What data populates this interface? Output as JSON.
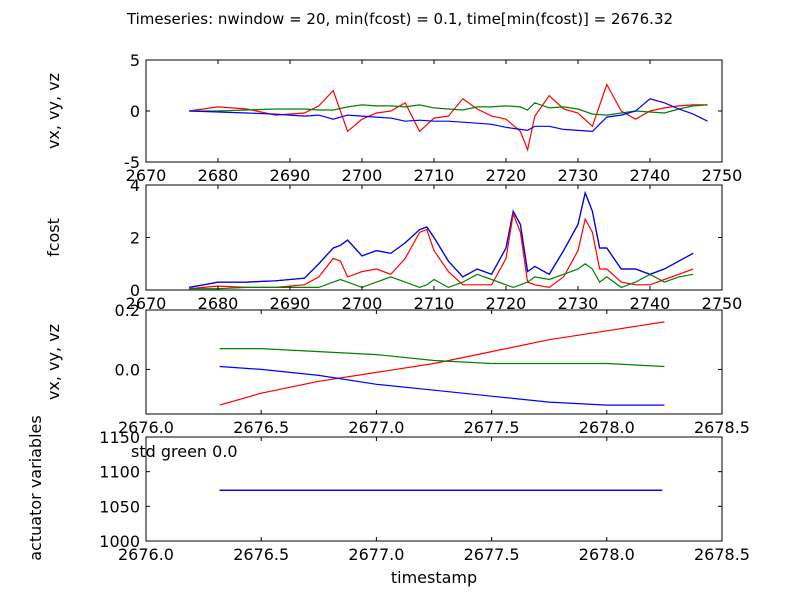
{
  "figure": {
    "title": "Timeseries: nwindow = 20, min(fcost) = 0.1, time[min(fcost)] = 2676.32",
    "xlabel": "timestamp"
  },
  "chart_data": [
    {
      "type": "line",
      "ylabel": "vx, vy, vz",
      "xlim": [
        2670,
        2750
      ],
      "ylim": [
        -5,
        5
      ],
      "xticks": [
        "2670",
        "2680",
        "2690",
        "2700",
        "2710",
        "2720",
        "2730",
        "2740",
        "2750"
      ],
      "yticks": [
        "-5",
        "0",
        "5"
      ],
      "x": [
        2676,
        2680,
        2684,
        2688,
        2692,
        2694,
        2696,
        2698,
        2700,
        2702,
        2704,
        2706,
        2708,
        2710,
        2712,
        2714,
        2716,
        2718,
        2720,
        2722,
        2723,
        2724,
        2726,
        2728,
        2730,
        2732,
        2734,
        2736,
        2738,
        2740,
        2742,
        2744,
        2746,
        2748
      ],
      "series": [
        {
          "color": "#ff0000",
          "values": [
            0.0,
            0.4,
            0.2,
            -0.4,
            -0.2,
            0.5,
            2.0,
            -2.0,
            -0.8,
            -0.2,
            0.0,
            0.8,
            -2.0,
            -0.7,
            -0.5,
            1.2,
            0.2,
            -0.5,
            -0.8,
            -2.0,
            -3.8,
            -0.5,
            1.5,
            0.2,
            -0.2,
            -1.5,
            2.6,
            0.0,
            -0.8,
            0.0,
            0.3,
            0.5,
            0.6,
            0.6
          ]
        },
        {
          "color": "#008000",
          "values": [
            0.0,
            0.0,
            0.1,
            0.2,
            0.2,
            0.1,
            0.1,
            0.4,
            0.6,
            0.5,
            0.5,
            0.4,
            0.6,
            0.3,
            0.2,
            0.1,
            0.4,
            0.4,
            0.5,
            0.4,
            0.1,
            0.8,
            0.3,
            0.4,
            0.2,
            -0.3,
            -0.4,
            -0.2,
            0.0,
            -0.1,
            -0.2,
            0.2,
            0.5,
            0.6
          ]
        },
        {
          "color": "#0000ff",
          "values": [
            0.0,
            -0.1,
            -0.2,
            -0.3,
            -0.5,
            -0.4,
            -0.8,
            -0.4,
            -0.5,
            -0.6,
            -0.7,
            -1.0,
            -0.9,
            -1.0,
            -1.0,
            -1.1,
            -1.2,
            -1.3,
            -1.6,
            -1.8,
            -1.9,
            -1.5,
            -1.5,
            -1.8,
            -1.9,
            -2.0,
            -0.6,
            -0.4,
            0.0,
            1.2,
            0.8,
            0.2,
            -0.3,
            -1.0
          ]
        }
      ]
    },
    {
      "type": "line",
      "ylabel": "fcost",
      "xlim": [
        2670,
        2750
      ],
      "ylim": [
        0,
        4
      ],
      "xticks": [
        "2670",
        "2680",
        "2690",
        "2700",
        "2710",
        "2720",
        "2730",
        "2740",
        "2750"
      ],
      "yticks": [
        "0",
        "2",
        "4"
      ],
      "x": [
        2676,
        2678,
        2680,
        2684,
        2688,
        2692,
        2694,
        2696,
        2697,
        2698,
        2700,
        2702,
        2704,
        2706,
        2708,
        2709,
        2710,
        2712,
        2714,
        2716,
        2718,
        2720,
        2721,
        2722,
        2723,
        2724,
        2726,
        2728,
        2730,
        2731,
        2732,
        2733,
        2734,
        2736,
        2738,
        2740,
        2742,
        2744,
        2746
      ],
      "series": [
        {
          "color": "#000000",
          "values": [
            0.1,
            0.2,
            0.3,
            0.3,
            0.35,
            0.45,
            1.0,
            1.6,
            1.7,
            1.9,
            1.3,
            1.5,
            1.4,
            1.8,
            2.3,
            2.4,
            2.0,
            1.1,
            0.5,
            0.8,
            0.6,
            1.6,
            3.0,
            2.5,
            0.7,
            0.9,
            0.6,
            1.5,
            2.5,
            3.7,
            3.0,
            1.6,
            1.6,
            0.8,
            0.8,
            0.6,
            0.8,
            1.1,
            1.4
          ]
        },
        {
          "color": "#0000ff",
          "values": [
            0.1,
            0.2,
            0.3,
            0.3,
            0.35,
            0.45,
            1.0,
            1.6,
            1.7,
            1.9,
            1.3,
            1.5,
            1.4,
            1.8,
            2.3,
            2.4,
            2.0,
            1.1,
            0.5,
            0.8,
            0.6,
            1.6,
            3.0,
            2.5,
            0.7,
            0.9,
            0.6,
            1.5,
            2.5,
            3.7,
            3.0,
            1.6,
            1.6,
            0.8,
            0.8,
            0.6,
            0.8,
            1.1,
            1.4
          ]
        },
        {
          "color": "#ff0000",
          "values": [
            0.05,
            0.1,
            0.15,
            0.1,
            0.1,
            0.2,
            0.5,
            1.2,
            1.1,
            0.5,
            0.7,
            0.8,
            0.6,
            1.2,
            2.2,
            2.3,
            1.5,
            0.7,
            0.2,
            0.2,
            0.2,
            1.2,
            2.9,
            2.2,
            0.3,
            0.2,
            0.1,
            0.5,
            1.5,
            2.7,
            2.2,
            0.8,
            0.8,
            0.3,
            0.2,
            0.2,
            0.4,
            0.6,
            0.8
          ]
        },
        {
          "color": "#008000",
          "values": [
            0.05,
            0.05,
            0.05,
            0.1,
            0.1,
            0.1,
            0.1,
            0.3,
            0.4,
            0.3,
            0.1,
            0.3,
            0.5,
            0.3,
            0.1,
            0.2,
            0.4,
            0.1,
            0.3,
            0.6,
            0.4,
            0.2,
            0.1,
            0.2,
            0.3,
            0.5,
            0.4,
            0.6,
            0.8,
            1.0,
            0.8,
            0.3,
            0.5,
            0.1,
            0.3,
            0.6,
            0.3,
            0.5,
            0.6
          ]
        }
      ]
    },
    {
      "type": "line",
      "ylabel": "vx, vy, vz",
      "xlim": [
        2676.0,
        2678.5
      ],
      "ylim": [
        -0.15,
        0.2
      ],
      "xticks": [
        "2676.0",
        "2676.5",
        "2677.0",
        "2677.5",
        "2678.0",
        "2678.5"
      ],
      "yticks": [
        "0.0",
        "0.2"
      ],
      "x": [
        2676.32,
        2676.5,
        2676.75,
        2677.0,
        2677.25,
        2677.5,
        2677.75,
        2678.0,
        2678.25
      ],
      "series": [
        {
          "color": "#ff0000",
          "values": [
            -0.12,
            -0.08,
            -0.04,
            -0.01,
            0.02,
            0.06,
            0.1,
            0.13,
            0.16
          ]
        },
        {
          "color": "#008000",
          "values": [
            0.07,
            0.07,
            0.06,
            0.05,
            0.03,
            0.02,
            0.02,
            0.02,
            0.01
          ]
        },
        {
          "color": "#0000ff",
          "values": [
            0.01,
            0.0,
            -0.02,
            -0.05,
            -0.07,
            -0.09,
            -0.11,
            -0.12,
            -0.12
          ]
        }
      ]
    },
    {
      "type": "line",
      "ylabel": "actuator variables",
      "xlim": [
        2676.0,
        2678.5
      ],
      "ylim": [
        1000,
        1150
      ],
      "xticks": [
        "2676.0",
        "2676.5",
        "2677.0",
        "2677.5",
        "2678.0",
        "2678.5"
      ],
      "yticks": [
        "1000",
        "1050",
        "1100",
        "1150"
      ],
      "annotation": "std green 0.0",
      "x": [
        2676.32,
        2678.24
      ],
      "series": [
        {
          "color": "#ff0000",
          "values": [
            1073,
            1073
          ]
        },
        {
          "color": "#008000",
          "values": [
            1073,
            1073
          ]
        },
        {
          "color": "#000000",
          "values": [
            1073,
            1073
          ]
        },
        {
          "color": "#0000ff",
          "values": [
            1073,
            1073
          ]
        }
      ]
    }
  ]
}
